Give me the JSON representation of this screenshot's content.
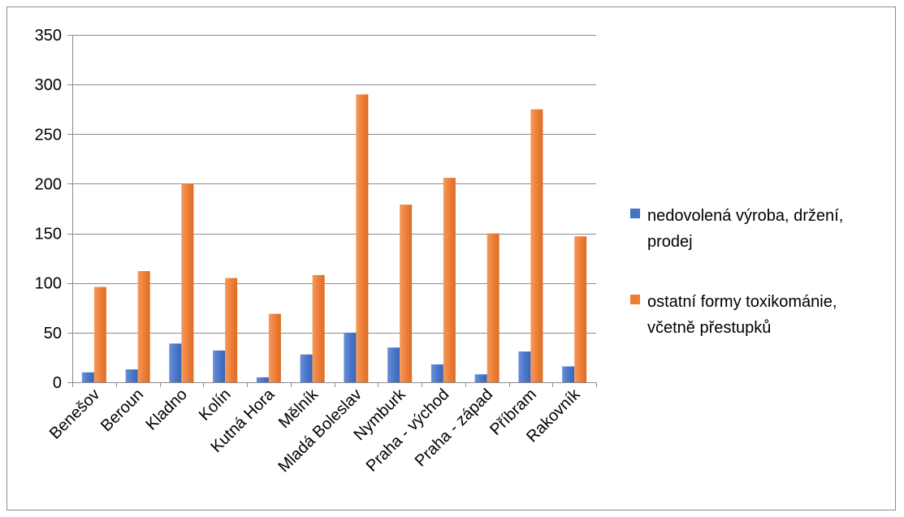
{
  "chart_data": {
    "type": "bar",
    "title": "",
    "xlabel": "",
    "ylabel": "",
    "ylim": [
      0,
      350
    ],
    "yticks": [
      0,
      50,
      100,
      150,
      200,
      250,
      300,
      350
    ],
    "grid": true,
    "legend_position": "right",
    "categories": [
      "Benešov",
      "Beroun",
      "Kladno",
      "Kolín",
      "Kutná Hora",
      "Mělník",
      "Mladá Boleslav",
      "Nymburk",
      "Praha - východ",
      "Praha - západ",
      "Příbram",
      "Rakovník"
    ],
    "series": [
      {
        "name": "nedovolená výroba, držení, prodej",
        "legend_lines": [
          "nedovolená výroba, držení,",
          "prodej"
        ],
        "color": "#4472C4",
        "values": [
          10,
          13,
          39,
          32,
          5,
          28,
          50,
          35,
          18,
          8,
          31,
          16
        ]
      },
      {
        "name": "ostatní formy toxikománie, včetně přestupků",
        "legend_lines": [
          "ostatní formy toxikománie,",
          "včetně přestupků"
        ],
        "color": "#ED7D31",
        "values": [
          96,
          112,
          200,
          105,
          69,
          108,
          290,
          179,
          206,
          150,
          275,
          147
        ]
      }
    ]
  }
}
